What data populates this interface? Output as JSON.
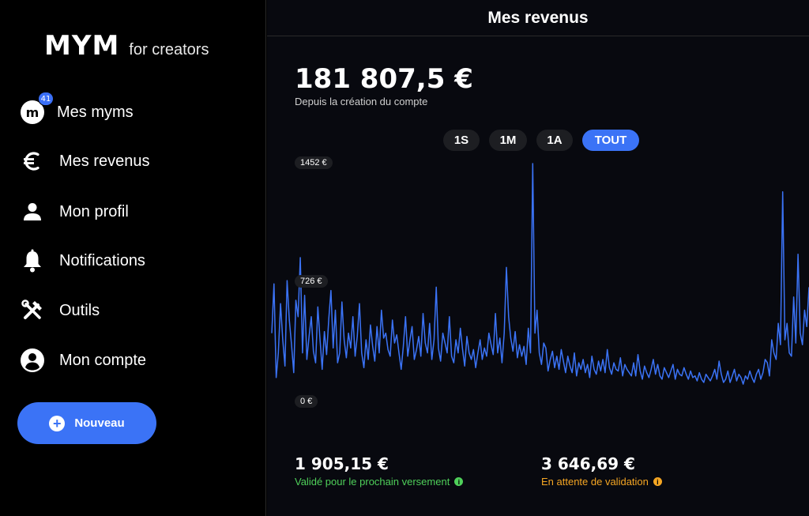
{
  "brand": {
    "logo": "MYM",
    "sub": "for creators"
  },
  "sidebar": {
    "items": [
      {
        "label": "Mes myms",
        "icon": "m-avatar-icon",
        "avatar_letter": "m",
        "badge": "41"
      },
      {
        "label": "Mes revenus",
        "icon": "euro-icon"
      },
      {
        "label": "Mon profil",
        "icon": "person-icon"
      },
      {
        "label": "Notifications",
        "icon": "bell-icon"
      },
      {
        "label": "Outils",
        "icon": "tools-icon"
      },
      {
        "label": "Mon compte",
        "icon": "account-circle-icon"
      }
    ],
    "new_button": {
      "label": "Nouveau",
      "icon": "plus-circle-icon"
    }
  },
  "header": {
    "title": "Mes revenus"
  },
  "summary": {
    "total": "181 807,5 €",
    "subtitle": "Depuis la création du compte"
  },
  "range_tabs": [
    {
      "label": "1S",
      "active": false
    },
    {
      "label": "1M",
      "active": false
    },
    {
      "label": "1A",
      "active": false
    },
    {
      "label": "TOUT",
      "active": true
    }
  ],
  "chart_data": {
    "type": "line",
    "y_tick_labels": [
      "1452 €",
      "726 €",
      "0 €"
    ],
    "y_ticks": [
      1452,
      726,
      0
    ],
    "ylim": [
      0,
      1452
    ],
    "grid": false,
    "series": [
      {
        "color": "#3b73f6",
        "values": [
          420,
          720,
          150,
          300,
          600,
          380,
          220,
          740,
          500,
          350,
          180,
          620,
          520,
          880,
          300,
          650,
          260,
          400,
          520,
          310,
          240,
          580,
          380,
          200,
          430,
          290,
          510,
          680,
          330,
          560,
          240,
          300,
          610,
          380,
          270,
          420,
          330,
          520,
          280,
          400,
          600,
          300,
          210,
          380,
          260,
          470,
          340,
          250,
          460,
          300,
          560,
          390,
          420,
          320,
          280,
          500,
          360,
          410,
          300,
          200,
          340,
          520,
          280,
          380,
          460,
          260,
          320,
          400,
          280,
          540,
          360,
          300,
          480,
          260,
          380,
          700,
          330,
          250,
          420,
          360,
          300,
          520,
          280,
          240,
          380,
          300,
          450,
          320,
          220,
          400,
          300,
          260,
          320,
          210,
          300,
          380,
          260,
          330,
          280,
          420,
          350,
          290,
          540,
          300,
          390,
          240,
          420,
          820,
          520,
          390,
          310,
          430,
          270,
          350,
          280,
          340,
          230,
          450,
          300,
          1452,
          420,
          560,
          300,
          230,
          360,
          330,
          190,
          260,
          310,
          210,
          280,
          200,
          320,
          250,
          180,
          280,
          220,
          180,
          300,
          160,
          240,
          200,
          260,
          180,
          230,
          150,
          280,
          200,
          170,
          250,
          190,
          260,
          180,
          320,
          210,
          170,
          240,
          200,
          190,
          270,
          160,
          230,
          200,
          180,
          160,
          240,
          160,
          290,
          190,
          140,
          220,
          180,
          150,
          200,
          260,
          170,
          230,
          160,
          140,
          210,
          180,
          150,
          190,
          230,
          140,
          200,
          170,
          160,
          210,
          170,
          140,
          190,
          150,
          160,
          130,
          180,
          140,
          120,
          170,
          150,
          130,
          160,
          200,
          140,
          250,
          170,
          120,
          140,
          190,
          120,
          160,
          200,
          130,
          170,
          150,
          110,
          160,
          140,
          190,
          150,
          120,
          170,
          200,
          140,
          180,
          260,
          240,
          160,
          380,
          300,
          260,
          480,
          350,
          1280,
          380,
          480,
          300,
          280,
          640,
          360,
          900,
          420,
          350,
          560,
          460,
          700
        ]
      }
    ]
  },
  "stats": [
    {
      "value": "1 905,15 €",
      "label": "Validé pour le prochain versement",
      "color": "#4fd05a",
      "icon": "info-icon"
    },
    {
      "value": "3 646,69 €",
      "label": "En attente de validation",
      "color": "#f5a623",
      "icon": "info-icon"
    }
  ]
}
